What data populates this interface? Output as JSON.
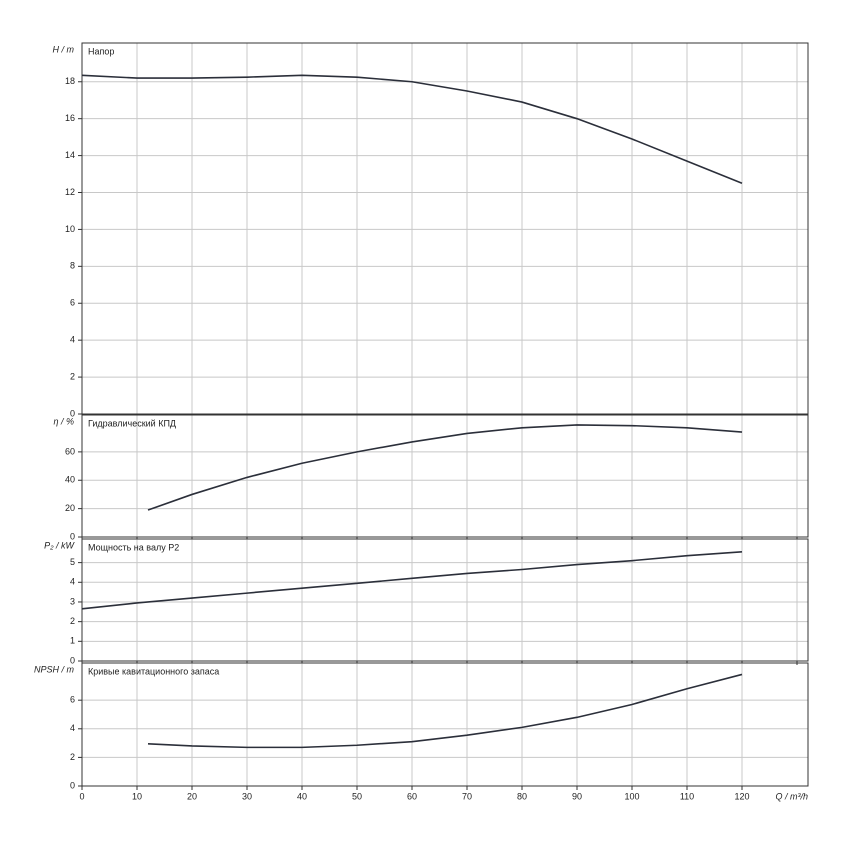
{
  "chart_data": [
    {
      "type": "line",
      "title": "Напор",
      "ylabel": "H / m",
      "color": "#2b2f3a",
      "x": [
        0,
        10,
        20,
        30,
        40,
        50,
        60,
        70,
        80,
        90,
        100,
        110,
        120
      ],
      "values": [
        18.35,
        18.2,
        18.2,
        18.25,
        18.35,
        18.25,
        18.0,
        17.5,
        16.9,
        16.0,
        14.9,
        13.7,
        12.5
      ],
      "xlim": [
        0,
        132
      ],
      "xticks": [
        0,
        10,
        20,
        30,
        40,
        50,
        60,
        70,
        80,
        90,
        100,
        110,
        120,
        130
      ],
      "ylim": [
        0,
        20.1
      ],
      "yticks": [
        0,
        2,
        4,
        6,
        8,
        10,
        12,
        14,
        16,
        18
      ],
      "grid": true
    },
    {
      "type": "line",
      "title": "Гидравлический КПД",
      "ylabel": "η / %",
      "color": "#2b2f3a",
      "x": [
        12,
        20,
        30,
        40,
        50,
        60,
        70,
        80,
        90,
        100,
        110,
        120
      ],
      "values": [
        19,
        30,
        42,
        52,
        60,
        67,
        73,
        77,
        79,
        78.5,
        77,
        74
      ],
      "xlim": [
        0,
        132
      ],
      "xticks": [
        0,
        10,
        20,
        30,
        40,
        50,
        60,
        70,
        80,
        90,
        100,
        110,
        120,
        130
      ],
      "ylim": [
        0,
        86
      ],
      "yticks": [
        0,
        20,
        40,
        60
      ],
      "grid": true
    },
    {
      "type": "line",
      "title": "Мощность на валу P2",
      "ylabel": "P₂ / kW",
      "color": "#2b2f3a",
      "x": [
        0,
        10,
        20,
        30,
        40,
        50,
        60,
        70,
        80,
        90,
        100,
        110,
        120
      ],
      "values": [
        2.65,
        2.95,
        3.2,
        3.45,
        3.7,
        3.95,
        4.2,
        4.45,
        4.65,
        4.9,
        5.1,
        5.35,
        5.55
      ],
      "xlim": [
        0,
        132
      ],
      "xticks": [
        0,
        10,
        20,
        30,
        40,
        50,
        60,
        70,
        80,
        90,
        100,
        110,
        120,
        130
      ],
      "ylim": [
        0,
        6.2
      ],
      "yticks": [
        0,
        1,
        2,
        3,
        4,
        5
      ],
      "grid": true
    },
    {
      "type": "line",
      "title": "Кривые кавитационного запаса",
      "ylabel": "NPSH / m",
      "xlabel": "Q / m³/h",
      "color": "#2b2f3a",
      "x": [
        12,
        20,
        30,
        40,
        50,
        60,
        70,
        80,
        90,
        100,
        110,
        120
      ],
      "values": [
        2.95,
        2.8,
        2.7,
        2.7,
        2.85,
        3.1,
        3.55,
        4.1,
        4.8,
        5.7,
        6.8,
        7.8
      ],
      "xlim": [
        0,
        132
      ],
      "xticks": [
        0,
        10,
        20,
        30,
        40,
        50,
        60,
        70,
        80,
        90,
        100,
        110,
        120
      ],
      "ylim": [
        0,
        8.6
      ],
      "yticks": [
        0,
        2,
        4,
        6
      ],
      "grid": true
    }
  ]
}
